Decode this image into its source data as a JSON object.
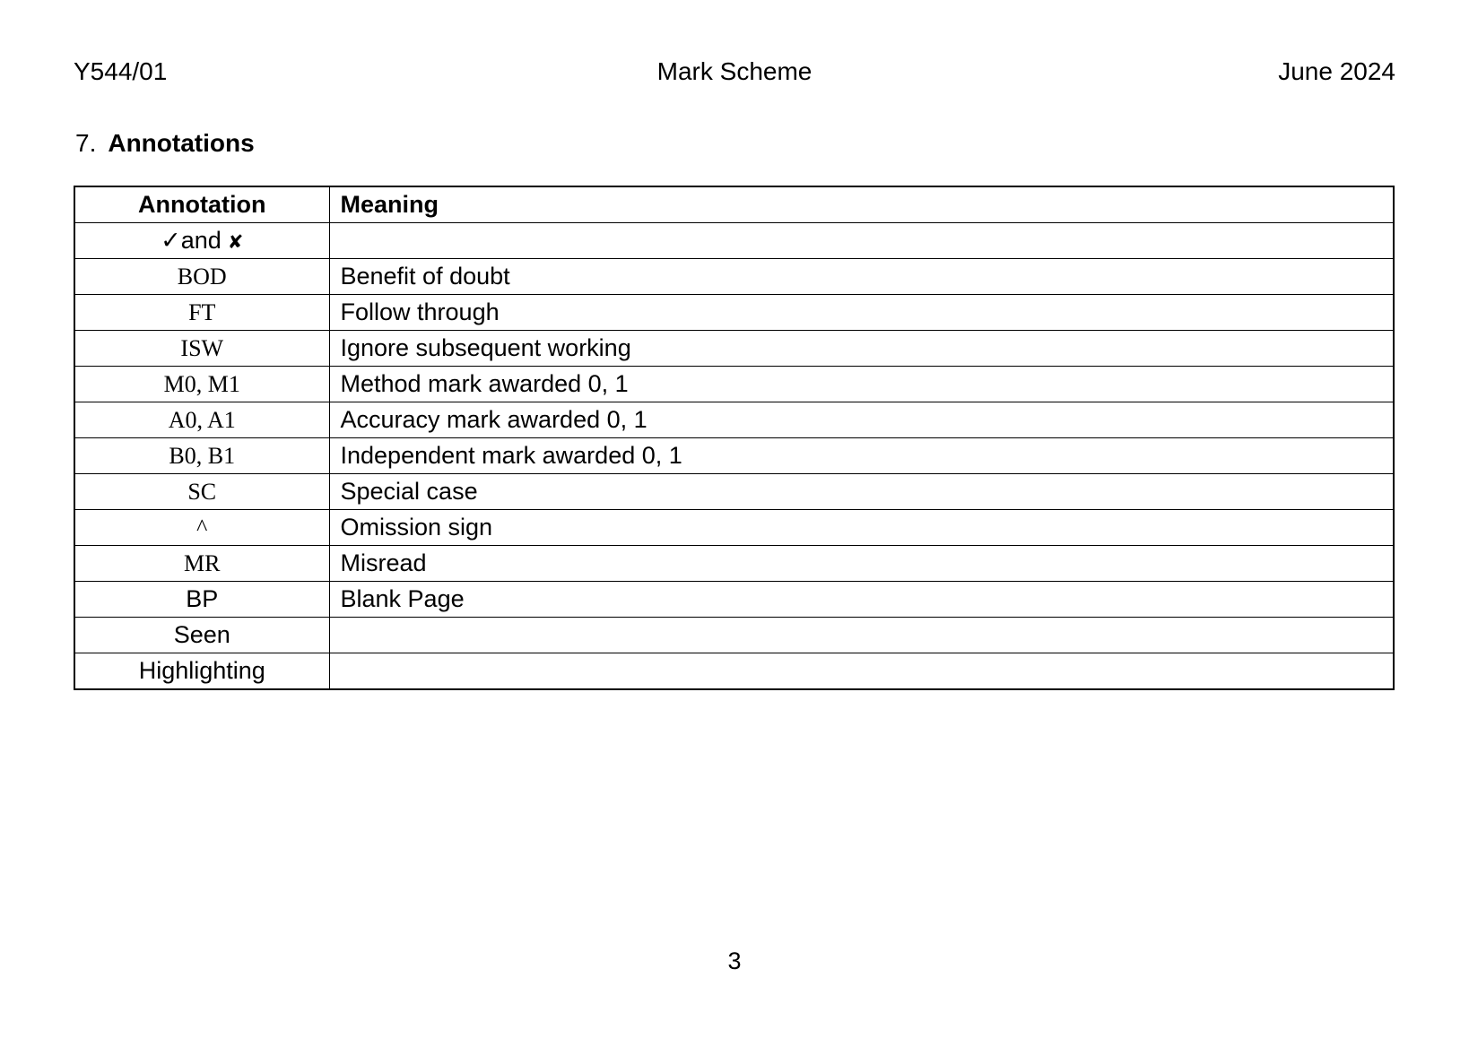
{
  "header": {
    "left": "Y544/01",
    "center": "Mark Scheme",
    "right": "June 2024"
  },
  "section": {
    "number": "7.",
    "title": "Annotations"
  },
  "table": {
    "columns": [
      "Annotation",
      "Meaning"
    ],
    "rows": [
      {
        "annotation": "✓and ✘",
        "style": "sans",
        "meaning": "",
        "symbols": {
          "check": "✓",
          "conjunction": "and",
          "cross": "✘"
        }
      },
      {
        "annotation": "BOD",
        "style": "serif",
        "meaning": "Benefit of doubt"
      },
      {
        "annotation": "FT",
        "style": "serif",
        "meaning": "Follow through"
      },
      {
        "annotation": "ISW",
        "style": "serif",
        "meaning": "Ignore subsequent working"
      },
      {
        "annotation": "M0, M1",
        "style": "serif",
        "meaning": "Method mark awarded 0, 1"
      },
      {
        "annotation": "A0, A1",
        "style": "serif",
        "meaning": "Accuracy mark awarded 0, 1"
      },
      {
        "annotation": "B0, B1",
        "style": "serif",
        "meaning": "Independent mark awarded 0, 1"
      },
      {
        "annotation": "SC",
        "style": "serif",
        "meaning": "Special case"
      },
      {
        "annotation": "^",
        "style": "serif",
        "meaning": "Omission sign"
      },
      {
        "annotation": "MR",
        "style": "serif",
        "meaning": "Misread"
      },
      {
        "annotation": "BP",
        "style": "sans",
        "meaning": "Blank Page"
      },
      {
        "annotation": "Seen",
        "style": "sans",
        "meaning": ""
      },
      {
        "annotation": "Highlighting",
        "style": "sans",
        "meaning": ""
      }
    ]
  },
  "footer": {
    "page_number": "3"
  }
}
